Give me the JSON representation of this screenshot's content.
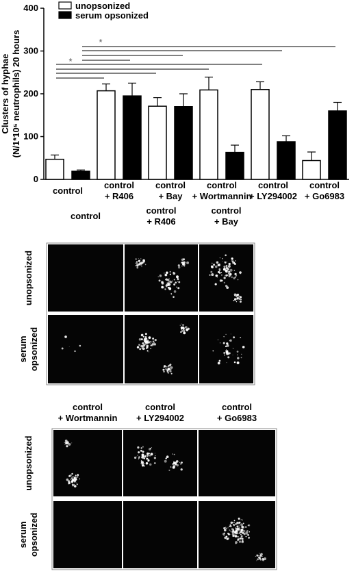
{
  "chart_data": {
    "type": "bar",
    "y_label": [
      "Clusters of hyphae",
      "(N/1*10⁵ neutrophils) 20 hours"
    ],
    "categories": [
      "control",
      "control\n+ R406",
      "control\n+ Bay",
      "control\n+ Wortmannin",
      "control\n+ LY294002",
      "control\n+ Go6983"
    ],
    "series": [
      {
        "name": "unopsonized",
        "color": "#ffffff",
        "values": [
          47,
          207,
          171,
          209,
          210,
          44
        ],
        "errors": [
          10,
          16,
          20,
          30,
          18,
          20
        ]
      },
      {
        "name": "serum opsonized",
        "color": "#000000",
        "values": [
          19,
          195,
          170,
          63,
          88,
          160
        ],
        "errors": [
          3,
          30,
          30,
          17,
          14,
          20
        ]
      }
    ],
    "ylim": [
      0,
      400
    ],
    "yticks": [
      0,
      100,
      200,
      300,
      400
    ],
    "legend": "top",
    "annotations": [
      "*",
      "*"
    ]
  },
  "panels": [
    {
      "columns": [
        "control",
        "control\n+ R406",
        "control\n+ Bay"
      ],
      "rows": [
        "unopsonized",
        "serum\nopsonized"
      ]
    },
    {
      "columns": [
        "control\n+ Wortmannin",
        "control\n+ LY294002",
        "control\n+ Go6983"
      ],
      "rows": [
        "unopsonized",
        "serum\nopsonized"
      ]
    }
  ]
}
